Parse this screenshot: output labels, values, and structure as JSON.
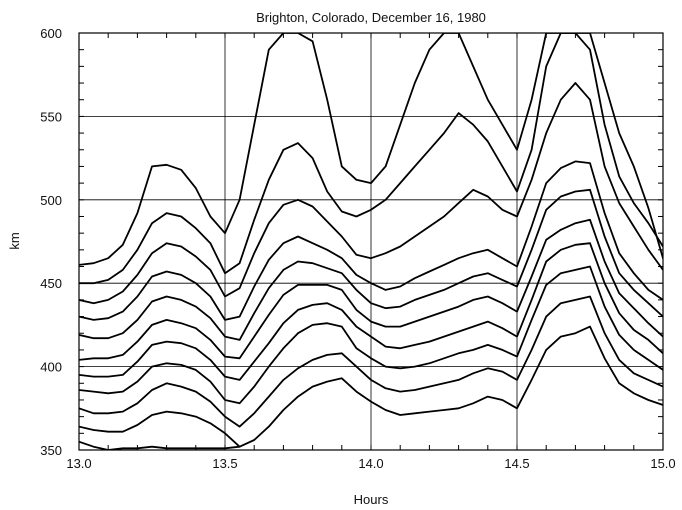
{
  "chart_data": {
    "type": "line",
    "title": "Brighton, Colorado, December 16, 1980",
    "xlabel": "Hours",
    "ylabel": "km",
    "xlim": [
      13.0,
      15.0
    ],
    "ylim": [
      350,
      600
    ],
    "x_ticks": [
      "13.0",
      "13.5",
      "14.0",
      "14.5",
      "15.0"
    ],
    "y_ticks": [
      "350",
      "400",
      "450",
      "500",
      "550",
      "600"
    ],
    "grid": true,
    "legend": "none",
    "series": [
      {
        "x": [
          13.0,
          13.05,
          13.1,
          13.15,
          13.2,
          13.25,
          13.3,
          13.35,
          13.4,
          13.45,
          13.5,
          13.55
        ],
        "y": [
          355,
          352,
          350,
          351,
          351,
          352,
          351,
          351,
          351,
          351,
          351,
          352
        ]
      },
      {
        "x": [
          13.0,
          13.05,
          13.1,
          13.15,
          13.2,
          13.25,
          13.3,
          13.35,
          13.4,
          13.45,
          13.5,
          13.55,
          13.6,
          13.65,
          13.7,
          13.75,
          13.8,
          13.85,
          13.9,
          13.95,
          14.0,
          14.05,
          14.1,
          14.15,
          14.2,
          14.25,
          14.3,
          14.35,
          14.4,
          14.45,
          14.5,
          14.55,
          14.6,
          14.65,
          14.7,
          14.75,
          14.8,
          14.85,
          14.9,
          14.95,
          15.0
        ],
        "y": [
          364,
          362,
          361,
          361,
          365,
          371,
          373,
          372,
          370,
          366,
          360,
          352,
          356,
          364,
          374,
          382,
          388,
          391,
          393,
          385,
          379,
          374,
          371,
          372,
          373,
          374,
          375,
          378,
          382,
          380,
          375,
          392,
          410,
          418,
          420,
          424,
          405,
          390,
          384,
          380,
          377
        ]
      },
      {
        "x": [
          13.0,
          13.05,
          13.1,
          13.15,
          13.2,
          13.25,
          13.3,
          13.35,
          13.4,
          13.45,
          13.5,
          13.55,
          13.6,
          13.65,
          13.7,
          13.75,
          13.8,
          13.85,
          13.9,
          13.95,
          14.0,
          14.05,
          14.1,
          14.15,
          14.2,
          14.25,
          14.3,
          14.35,
          14.4,
          14.45,
          14.5,
          14.55,
          14.6,
          14.65,
          14.7,
          14.75,
          14.8,
          14.85,
          14.9,
          14.95,
          15.0
        ],
        "y": [
          375,
          372,
          372,
          373,
          378,
          386,
          390,
          388,
          385,
          379,
          370,
          364,
          372,
          382,
          392,
          399,
          404,
          407,
          408,
          400,
          392,
          387,
          385,
          386,
          388,
          390,
          392,
          396,
          399,
          397,
          392,
          410,
          430,
          438,
          440,
          442,
          420,
          404,
          396,
          392,
          388
        ]
      },
      {
        "x": [
          13.0,
          13.05,
          13.1,
          13.15,
          13.2,
          13.25,
          13.3,
          13.35,
          13.4,
          13.45,
          13.5,
          13.55,
          13.6,
          13.65,
          13.7,
          13.75,
          13.8,
          13.85,
          13.9,
          13.95,
          14.0,
          14.05,
          14.1,
          14.15,
          14.2,
          14.25,
          14.3,
          14.35,
          14.4,
          14.45,
          14.5,
          14.55,
          14.6,
          14.65,
          14.7,
          14.75,
          14.8,
          14.85,
          14.9,
          14.95,
          15.0
        ],
        "y": [
          386,
          385,
          384,
          385,
          391,
          400,
          402,
          401,
          398,
          391,
          380,
          378,
          388,
          400,
          411,
          420,
          425,
          426,
          424,
          411,
          405,
          400,
          399,
          400,
          402,
          405,
          408,
          410,
          413,
          410,
          406,
          428,
          449,
          456,
          458,
          460,
          436,
          419,
          410,
          404,
          398
        ]
      },
      {
        "x": [
          13.0,
          13.05,
          13.1,
          13.15,
          13.2,
          13.25,
          13.3,
          13.35,
          13.4,
          13.45,
          13.5,
          13.55,
          13.6,
          13.65,
          13.7,
          13.75,
          13.8,
          13.85,
          13.9,
          13.95,
          14.0,
          14.05,
          14.1,
          14.15,
          14.2,
          14.25,
          14.3,
          14.35,
          14.4,
          14.45,
          14.5,
          14.55,
          14.6,
          14.65,
          14.7,
          14.75,
          14.8,
          14.85,
          14.9,
          14.95,
          15.0
        ],
        "y": [
          395,
          394,
          394,
          395,
          403,
          413,
          415,
          414,
          411,
          404,
          394,
          392,
          403,
          414,
          426,
          434,
          437,
          438,
          434,
          424,
          418,
          412,
          411,
          413,
          415,
          418,
          421,
          424,
          427,
          423,
          418,
          440,
          463,
          470,
          473,
          474,
          450,
          432,
          422,
          416,
          408
        ]
      },
      {
        "x": [
          13.0,
          13.05,
          13.1,
          13.15,
          13.2,
          13.25,
          13.3,
          13.35,
          13.4,
          13.45,
          13.5,
          13.55,
          13.6,
          13.65,
          13.7,
          13.75,
          13.8,
          13.85,
          13.9,
          13.95,
          14.0,
          14.05,
          14.1,
          14.15,
          14.2,
          14.25,
          14.3,
          14.35,
          14.4,
          14.45,
          14.5,
          14.55,
          14.6,
          14.65,
          14.7,
          14.75,
          14.8,
          14.85,
          14.9,
          14.95,
          15.0
        ],
        "y": [
          404,
          405,
          405,
          407,
          415,
          425,
          428,
          426,
          423,
          416,
          406,
          405,
          418,
          431,
          443,
          449,
          449,
          449,
          446,
          434,
          427,
          424,
          424,
          427,
          430,
          433,
          436,
          440,
          442,
          438,
          433,
          454,
          476,
          482,
          486,
          488,
          463,
          444,
          435,
          426,
          418
        ]
      },
      {
        "x": [
          13.0,
          13.05,
          13.1,
          13.15,
          13.2,
          13.25,
          13.3,
          13.35,
          13.4,
          13.45,
          13.5,
          13.55,
          13.6,
          13.65,
          13.7,
          13.75,
          13.8,
          13.85,
          13.9,
          13.95,
          14.0,
          14.05,
          14.1,
          14.15,
          14.2,
          14.25,
          14.3,
          14.35,
          14.4,
          14.45,
          14.5,
          14.55,
          14.6,
          14.65,
          14.7,
          14.75,
          14.8,
          14.85,
          14.9,
          14.95,
          15.0
        ],
        "y": [
          419,
          417,
          417,
          420,
          428,
          439,
          442,
          440,
          436,
          429,
          418,
          416,
          432,
          447,
          458,
          463,
          462,
          459,
          456,
          446,
          438,
          435,
          436,
          440,
          443,
          446,
          450,
          454,
          456,
          452,
          448,
          470,
          494,
          502,
          505,
          506,
          478,
          456,
          446,
          438,
          430
        ]
      },
      {
        "x": [
          13.0,
          13.05,
          13.1,
          13.15,
          13.2,
          13.25,
          13.3,
          13.35,
          13.4,
          13.45,
          13.5,
          13.55,
          13.6,
          13.65,
          13.7,
          13.75,
          13.8,
          13.85,
          13.9,
          13.95,
          14.0,
          14.05,
          14.1,
          14.15,
          14.2,
          14.25,
          14.3,
          14.35,
          14.4,
          14.45,
          14.5,
          14.55,
          14.6,
          14.65,
          14.7,
          14.75,
          14.8,
          14.85,
          14.9,
          14.95,
          15.0
        ],
        "y": [
          430,
          428,
          429,
          433,
          442,
          454,
          457,
          455,
          450,
          442,
          428,
          430,
          448,
          464,
          474,
          478,
          474,
          470,
          465,
          455,
          450,
          446,
          448,
          453,
          457,
          461,
          465,
          468,
          470,
          465,
          460,
          484,
          510,
          519,
          523,
          522,
          492,
          468,
          456,
          446,
          440
        ]
      },
      {
        "x": [
          13.0,
          13.05,
          13.1,
          13.15,
          13.2,
          13.25,
          13.3,
          13.35,
          13.4,
          13.45,
          13.5,
          13.55,
          13.6,
          13.65,
          13.7,
          13.75,
          13.8,
          13.85,
          13.9,
          13.95,
          14.0,
          14.05,
          14.1,
          14.15,
          14.2,
          14.25,
          14.3,
          14.35,
          14.4,
          14.45,
          14.5,
          14.55,
          14.6,
          14.65,
          14.7,
          14.75,
          14.8,
          14.85,
          14.9,
          14.95,
          15.0
        ],
        "y": [
          440,
          438,
          440,
          445,
          455,
          468,
          474,
          472,
          466,
          458,
          442,
          447,
          468,
          486,
          497,
          500,
          496,
          487,
          478,
          467,
          465,
          468,
          472,
          478,
          484,
          490,
          498,
          506,
          502,
          494,
          490,
          512,
          540,
          560,
          570,
          560,
          520,
          498,
          484,
          470,
          458
        ]
      },
      {
        "x": [
          13.0,
          13.05,
          13.1,
          13.15,
          13.2,
          13.25,
          13.3,
          13.35,
          13.4,
          13.45,
          13.5,
          13.55,
          13.6,
          13.65,
          13.7,
          13.75,
          13.8,
          13.85,
          13.9,
          13.95,
          14.0,
          14.05,
          14.1,
          14.15,
          14.2,
          14.25,
          14.3,
          14.35,
          14.4,
          14.45,
          14.5,
          14.55,
          14.6,
          14.65,
          14.7,
          14.75,
          14.8,
          14.85,
          14.9,
          14.95,
          15.0
        ],
        "y": [
          450,
          450,
          452,
          458,
          470,
          486,
          492,
          490,
          483,
          474,
          456,
          462,
          488,
          512,
          530,
          534,
          525,
          505,
          493,
          490,
          494,
          500,
          510,
          520,
          530,
          540,
          552,
          545,
          535,
          520,
          505,
          530,
          580,
          600,
          600,
          590,
          545,
          514,
          498,
          486,
          472
        ]
      },
      {
        "x": [
          13.0,
          13.05,
          13.1,
          13.15,
          13.2,
          13.25,
          13.3,
          13.35,
          13.4,
          13.45,
          13.5,
          13.55,
          13.6,
          13.65,
          13.7,
          13.75,
          13.8,
          13.85,
          13.9,
          13.95,
          14.0,
          14.05,
          14.1,
          14.15,
          14.2,
          14.25,
          14.3,
          14.35,
          14.4,
          14.45,
          14.5,
          14.55,
          14.6,
          14.65,
          14.7,
          14.75,
          14.8,
          14.85,
          14.9,
          14.95,
          15.0
        ],
        "y": [
          461,
          462,
          465,
          473,
          492,
          520,
          521,
          518,
          507,
          490,
          480,
          500,
          545,
          590,
          600,
          600,
          595,
          560,
          520,
          512,
          510,
          520,
          545,
          570,
          590,
          600,
          600,
          580,
          560,
          545,
          530,
          560,
          600,
          600,
          600,
          600,
          570,
          540,
          520,
          495,
          465
        ]
      }
    ]
  }
}
